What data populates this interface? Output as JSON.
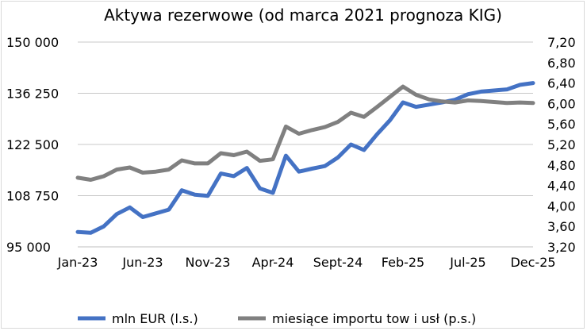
{
  "chart_data": {
    "type": "line",
    "title": "Aktywa rezerwowe (od marca 2021 prognoza KIG)",
    "x_tick_labels": [
      "Jan-23",
      "Jun-23",
      "Nov-23",
      "Apr-24",
      "Sept-24",
      "Feb-25",
      "Jul-25",
      "Dec-25"
    ],
    "y_left_ticks": [
      "150 000",
      "136 250",
      "122 500",
      "108 750",
      "95 000"
    ],
    "y_right_ticks": [
      "7,20",
      "6,80",
      "6,40",
      "6,00",
      "5,60",
      "5,20",
      "4,80",
      "4,40",
      "4,00",
      "3,60",
      "3,20"
    ],
    "ylim_left": [
      95000,
      150000
    ],
    "ylim_right": [
      3.2,
      7.2
    ],
    "grid": true,
    "legend_position": "bottom",
    "months": [
      "Jan-23",
      "Feb-23",
      "Mar-23",
      "Apr-23",
      "May-23",
      "Jun-23",
      "Jul-23",
      "Aug-23",
      "Sep-23",
      "Oct-23",
      "Nov-23",
      "Dec-23",
      "Jan-24",
      "Feb-24",
      "Mar-24",
      "Apr-24",
      "May-24",
      "Jun-24",
      "Jul-24",
      "Aug-24",
      "Sept-24",
      "Oct-24",
      "Nov-24",
      "Dec-24",
      "Jan-25",
      "Feb-25",
      "Mar-25",
      "Apr-25",
      "May-25",
      "Jun-25",
      "Jul-25",
      "Aug-25",
      "Sep-25",
      "Oct-25",
      "Nov-25",
      "Dec-25"
    ],
    "series": [
      {
        "name": "mln EUR (l.s.)",
        "axis": "left",
        "color": "#4472c4",
        "values": [
          99000,
          98800,
          100500,
          103800,
          105600,
          103000,
          104000,
          105000,
          110200,
          109000,
          108700,
          114700,
          114000,
          116200,
          110700,
          109500,
          119500,
          115200,
          116000,
          116700,
          119000,
          122500,
          121000,
          125200,
          129000,
          133800,
          132600,
          133200,
          133800,
          134500,
          136000,
          136700,
          137000,
          137300,
          138500,
          139000
        ]
      },
      {
        "name": "miesiące importu tow i usł (p.s.)",
        "axis": "right",
        "color": "#808080",
        "values": [
          4.55,
          4.51,
          4.58,
          4.71,
          4.75,
          4.65,
          4.67,
          4.71,
          4.89,
          4.83,
          4.83,
          5.03,
          4.99,
          5.06,
          4.88,
          4.91,
          5.55,
          5.41,
          5.48,
          5.54,
          5.64,
          5.82,
          5.74,
          5.93,
          6.13,
          6.33,
          6.17,
          6.08,
          6.04,
          6.02,
          6.06,
          6.05,
          6.03,
          6.01,
          6.02,
          6.01
        ]
      }
    ]
  }
}
